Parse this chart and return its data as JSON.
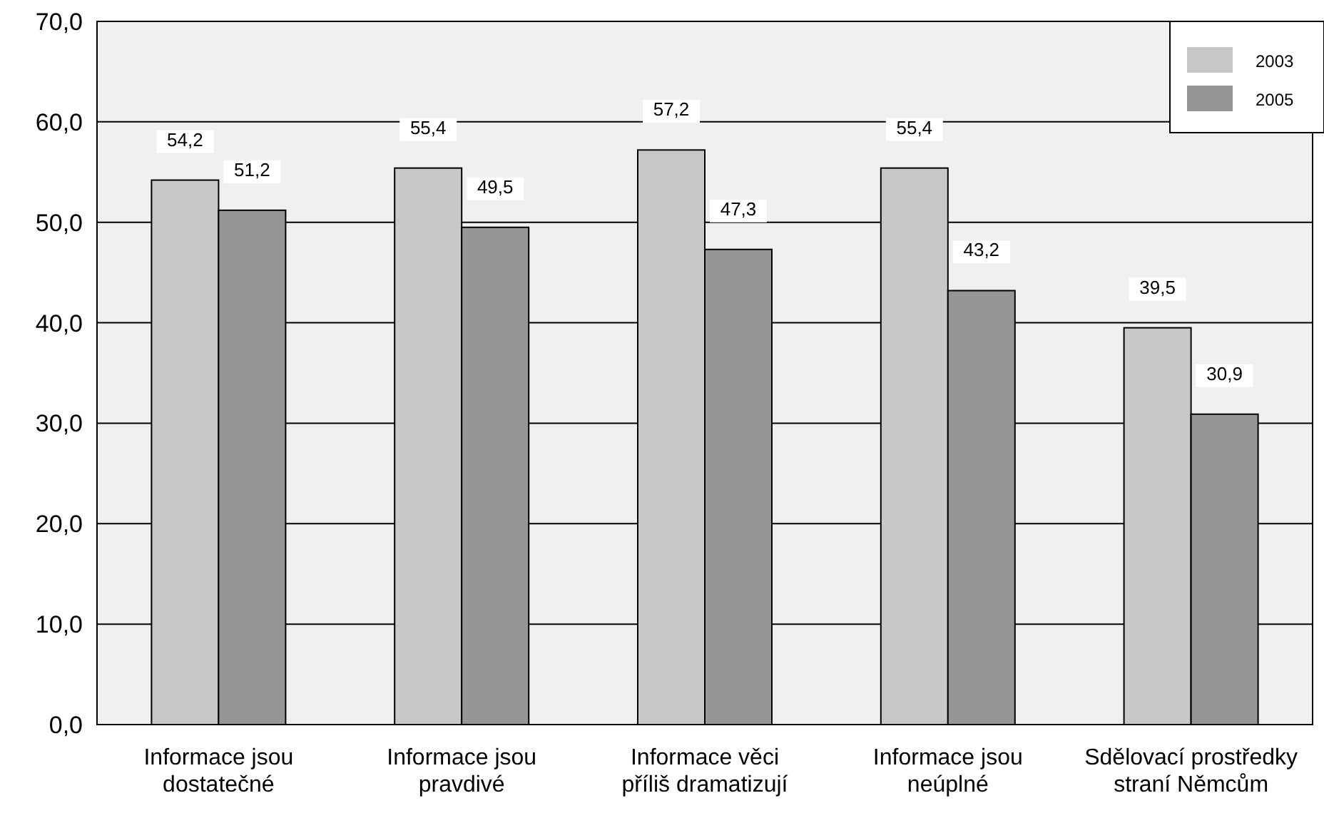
{
  "chart_data": {
    "type": "bar",
    "categories": [
      "Informace jsou dostatečné",
      "Informace jsou pravdivé",
      "Informace věci příliš dramatizují",
      "Informace jsou neúplné",
      "Sdělovací prostředky straní Němcům"
    ],
    "series": [
      {
        "name": "2003",
        "color": "#c8c8c8",
        "values": [
          54.2,
          55.4,
          57.2,
          55.4,
          39.5
        ],
        "value_labels": [
          "54,2",
          "55,4",
          "57,2",
          "55,4",
          "39,5"
        ]
      },
      {
        "name": "2005",
        "color": "#969696",
        "values": [
          51.2,
          49.5,
          47.3,
          43.2,
          30.9
        ],
        "value_labels": [
          "51,2",
          "49,5",
          "47,3",
          "43,2",
          "30,9"
        ]
      }
    ],
    "ylim": [
      0,
      70
    ],
    "yticks": [
      {
        "value": 0,
        "label": "0,0"
      },
      {
        "value": 10,
        "label": "10,0"
      },
      {
        "value": 20,
        "label": "20,0"
      },
      {
        "value": 30,
        "label": "30,0"
      },
      {
        "value": 40,
        "label": "40,0"
      },
      {
        "value": 50,
        "label": "50,0"
      },
      {
        "value": 60,
        "label": "60,0"
      },
      {
        "value": 70,
        "label": "70,0"
      }
    ],
    "grid": "y",
    "legend": "top right"
  }
}
